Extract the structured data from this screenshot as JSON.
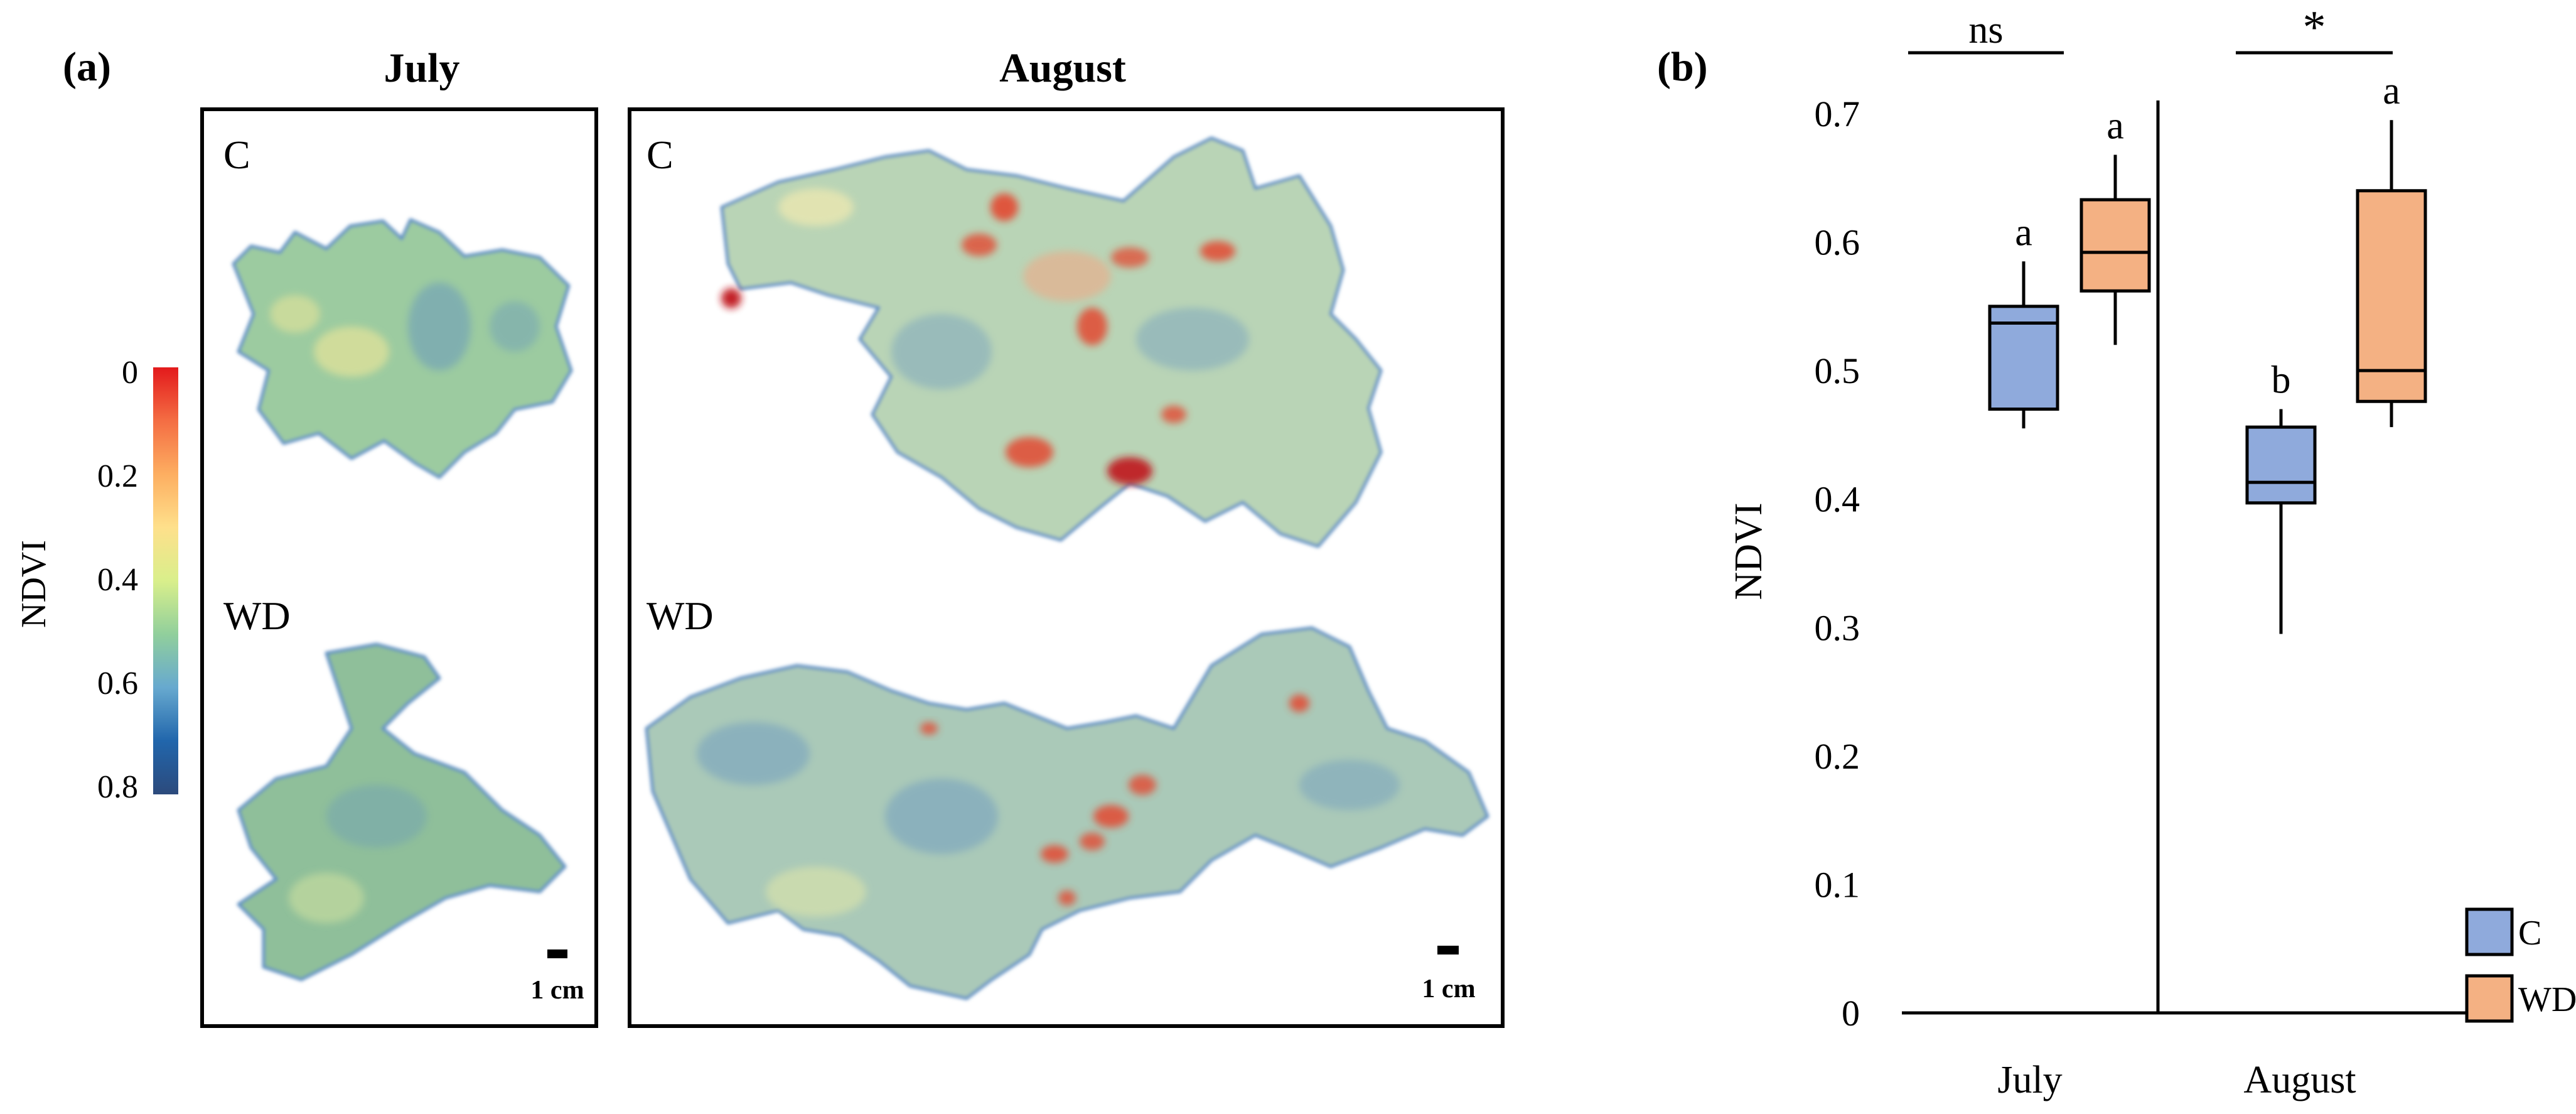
{
  "panel_a": {
    "label": "(a)",
    "col_july": "July",
    "col_august": "August",
    "row_c": "C",
    "row_wd": "WD",
    "scale_label": "1 cm",
    "colorbar": {
      "title": "NDVI",
      "ticks": [
        "0",
        "0.2",
        "0.4",
        "0.6",
        "0.8"
      ],
      "colors": [
        "#e31a1c",
        "#f46d43",
        "#fdae61",
        "#fee08b",
        "#d9ef8b",
        "#91cf9c",
        "#67a9cf",
        "#2166ac",
        "#2c4a7c"
      ]
    },
    "map_colors": {
      "july_c": "#9ccba0",
      "july_wd": "#8fbf9a",
      "aug_c": "#b9d4b6",
      "aug_wd": "#aac9b8",
      "hot": "#e34a33",
      "warm": "#f4a582",
      "cool": "#5e8fc2"
    }
  },
  "chart_data": {
    "type": "box",
    "panel_label": "(b)",
    "ylabel": "NDVI",
    "ylim": [
      0,
      0.7
    ],
    "yticks": [
      0,
      0.1,
      0.2,
      0.3,
      0.4,
      0.5,
      0.6,
      0.7
    ],
    "ytick_labels": [
      "0",
      "0.1",
      "0.2",
      "0.3",
      "0.4",
      "0.5",
      "0.6",
      "0.7"
    ],
    "categories": [
      "July",
      "August"
    ],
    "series": [
      {
        "name": "C",
        "color": "#8faadc",
        "boxes": [
          {
            "category": "July",
            "min": 0.455,
            "q1": 0.47,
            "median": 0.537,
            "q3": 0.55,
            "max": 0.585
          },
          {
            "category": "August",
            "min": 0.295,
            "q1": 0.397,
            "median": 0.413,
            "q3": 0.456,
            "max": 0.47
          }
        ]
      },
      {
        "name": "WD",
        "color": "#f4b183",
        "boxes": [
          {
            "category": "July",
            "min": 0.52,
            "q1": 0.562,
            "median": 0.592,
            "q3": 0.633,
            "max": 0.668
          },
          {
            "category": "August",
            "min": 0.456,
            "q1": 0.476,
            "median": 0.5,
            "q3": 0.64,
            "max": 0.695
          }
        ]
      }
    ],
    "letters": [
      {
        "category": "July",
        "series": "C",
        "text": "a"
      },
      {
        "category": "July",
        "series": "WD",
        "text": "a"
      },
      {
        "category": "August",
        "series": "C",
        "text": "b"
      },
      {
        "category": "August",
        "series": "WD",
        "text": "a"
      }
    ],
    "significance": [
      {
        "category": "July",
        "text": "ns"
      },
      {
        "category": "August",
        "text": "*"
      }
    ],
    "legend": [
      "C",
      "WD"
    ],
    "legend_position": "bottom-right"
  }
}
